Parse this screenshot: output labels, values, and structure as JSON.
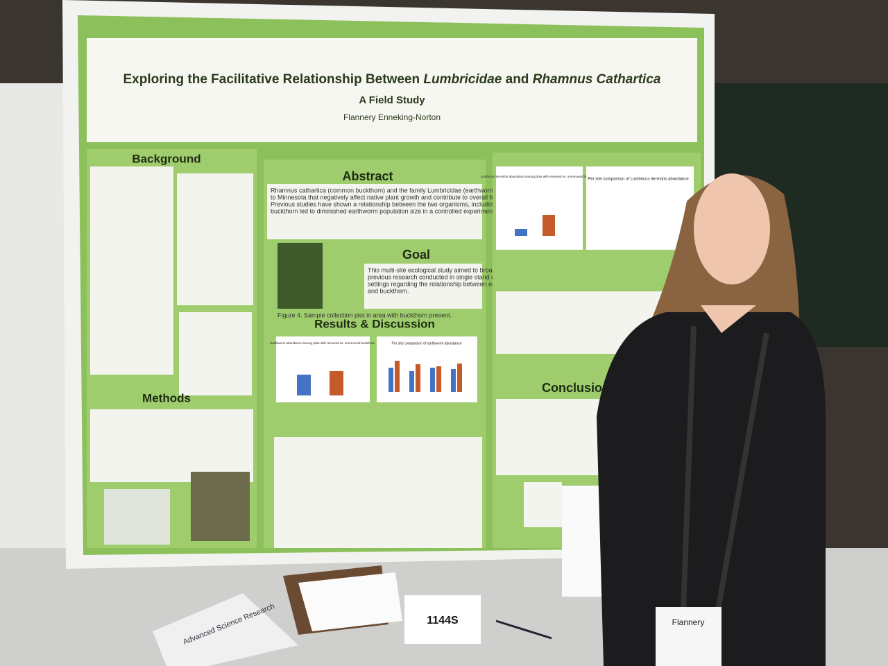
{
  "poster": {
    "title": [
      "Exploring the Facilitative Relationship Between ",
      "Lumbricidae",
      " and ",
      "Rhamnus Cathartica"
    ],
    "subtitle": "A Field Study",
    "author": "Flannery Enneking-Norton",
    "sections": {
      "background": "Background",
      "methods": "Methods",
      "abstract": "Abstract",
      "goal": "Goal",
      "results": "Results & Discussion",
      "conclusion": "Conclusion"
    },
    "abstract_lines": [
      "Rhamnus cathartica (common buckthorn) and the family Lumbricidae (earthworms) are two invasive species",
      "to Minnesota that negatively affect native plant growth and contribute to overall forest decline.",
      "Previous studies have shown a relationship between the two organisms, including that the removal of",
      "buckthorn led to diminished earthworm population size in a controlled experiment in hardwood tree stands."
    ],
    "goal_lines": [
      "This multi-site ecological study aimed to broaden the",
      "previous research conducted in single stand or greenhouse",
      "settings regarding the relationship between earthworms",
      "and buckthorn."
    ],
    "figure4": "Figure 4. Sample collection plot in area with buckthorn present.",
    "chart_titles": [
      "Earthworm abundance among plots with removed vs. unremoved buckthorn",
      "Per site comparison of earthworm abundance",
      "Lumbricus terrestris abundance among plots with removed vs. unremoved buckthorn",
      "Per site comparison of Lumbricus terrestris abundance"
    ]
  },
  "placard": "1144S",
  "book": "Advanced Science Research",
  "badge": "Flannery"
}
